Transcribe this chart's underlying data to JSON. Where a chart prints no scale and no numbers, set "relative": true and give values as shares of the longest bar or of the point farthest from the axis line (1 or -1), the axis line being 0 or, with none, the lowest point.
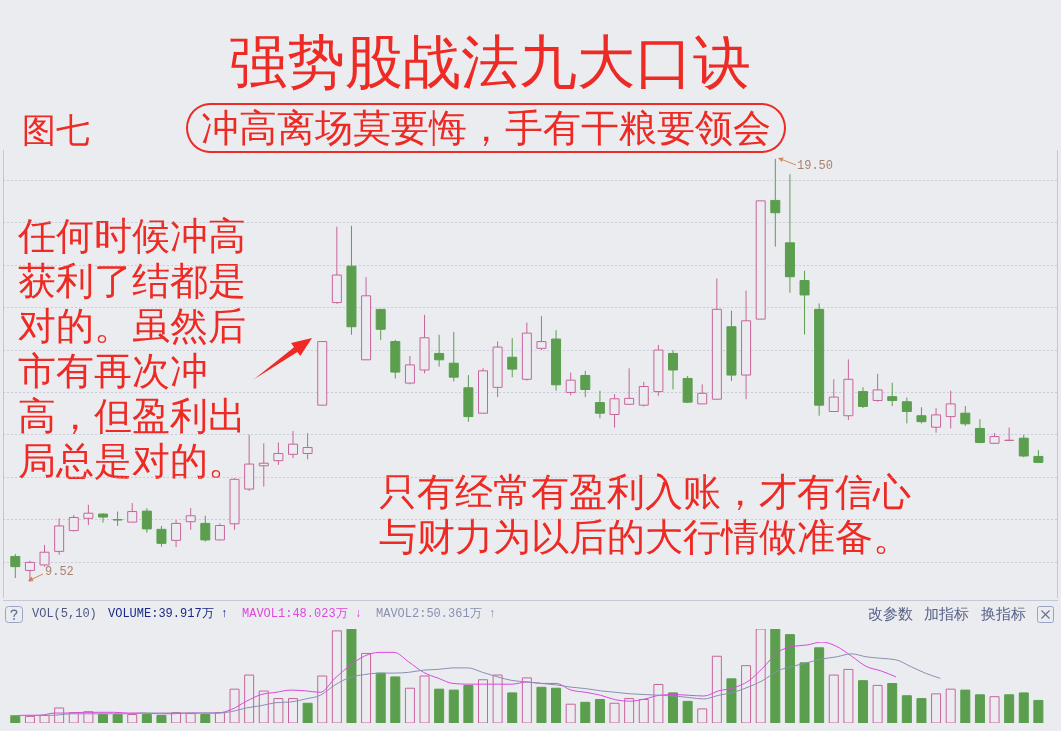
{
  "chart_data": [
    {
      "type": "candlestick",
      "title": "强势股战法九大口诀",
      "subtitle": "冲高离场莫要悔，手有干粮要领会",
      "categories": [
        null,
        null,
        null,
        null,
        null,
        null,
        null,
        null,
        null,
        null,
        null,
        null,
        null,
        null,
        null,
        null,
        null,
        null,
        null,
        null,
        null,
        null,
        null,
        null,
        null,
        null,
        null,
        null,
        null,
        null,
        null,
        null,
        null,
        null,
        null,
        null,
        null,
        null,
        null,
        null,
        null,
        null,
        null,
        null,
        null,
        null,
        null,
        null,
        null,
        null,
        null,
        null,
        null,
        null,
        null,
        null,
        null,
        null,
        null,
        null,
        null,
        null,
        null,
        null,
        null,
        null,
        null,
        null,
        null,
        null,
        null
      ],
      "ohlc": [
        [
          10.12,
          10.18,
          9.61,
          9.88
        ],
        [
          9.79,
          10.02,
          9.52,
          9.98
        ],
        [
          9.92,
          10.39,
          9.88,
          10.22
        ],
        [
          10.24,
          11.02,
          10.16,
          10.84
        ],
        [
          10.73,
          11.1,
          10.71,
          11.04
        ],
        [
          11.02,
          11.34,
          10.86,
          11.14
        ],
        [
          11.12,
          11.14,
          10.92,
          11.05
        ],
        [
          10.99,
          11.18,
          10.84,
          10.98
        ],
        [
          10.93,
          11.38,
          10.93,
          11.18
        ],
        [
          11.19,
          11.26,
          10.68,
          10.77
        ],
        [
          10.76,
          10.84,
          10.35,
          10.43
        ],
        [
          10.5,
          10.98,
          10.34,
          10.9
        ],
        [
          10.94,
          11.26,
          10.75,
          11.08
        ],
        [
          10.9,
          11.08,
          10.47,
          10.51
        ],
        [
          10.51,
          10.9,
          10.5,
          10.85
        ],
        [
          10.89,
          11.97,
          10.75,
          11.94
        ],
        [
          11.71,
          12.99,
          11.67,
          12.3
        ],
        [
          12.26,
          12.79,
          11.77,
          12.32
        ],
        [
          12.38,
          12.81,
          12.28,
          12.55
        ],
        [
          12.53,
          13.08,
          12.44,
          12.77
        ],
        [
          12.55,
          13.03,
          12.41,
          12.69
        ],
        [
          13.69,
          15.19,
          13.69,
          15.19
        ],
        [
          16.11,
          17.9,
          16.08,
          16.76
        ],
        [
          16.97,
          17.92,
          15.35,
          15.54
        ],
        [
          14.76,
          16.71,
          14.76,
          16.27
        ],
        [
          15.95,
          15.95,
          15.23,
          15.48
        ],
        [
          15.19,
          15.23,
          14.32,
          14.47
        ],
        [
          14.21,
          14.85,
          14.18,
          14.64
        ],
        [
          14.52,
          15.82,
          14.44,
          15.28
        ],
        [
          14.91,
          15.35,
          14.6,
          14.76
        ],
        [
          14.68,
          15.42,
          14.25,
          14.35
        ],
        [
          14.1,
          14.4,
          13.3,
          13.42
        ],
        [
          13.5,
          14.56,
          13.5,
          14.5
        ],
        [
          14.11,
          15.19,
          13.88,
          15.06
        ],
        [
          14.82,
          15.27,
          14.35,
          14.54
        ],
        [
          14.3,
          15.64,
          14.27,
          15.39
        ],
        [
          15.03,
          15.79,
          14.99,
          15.19
        ],
        [
          15.25,
          15.46,
          14.03,
          14.17
        ],
        [
          13.99,
          14.46,
          13.92,
          14.28
        ],
        [
          14.39,
          14.5,
          13.88,
          14.06
        ],
        [
          13.75,
          14.03,
          13.38,
          13.5
        ],
        [
          13.47,
          13.95,
          13.16,
          13.84
        ],
        [
          13.71,
          14.56,
          13.71,
          13.85
        ],
        [
          13.69,
          14.24,
          13.66,
          14.13
        ],
        [
          14.01,
          15.11,
          13.91,
          14.99
        ],
        [
          14.91,
          14.99,
          14.06,
          14.52
        ],
        [
          14.32,
          14.38,
          13.74,
          13.76
        ],
        [
          13.72,
          14.18,
          13.72,
          13.97
        ],
        [
          13.83,
          16.68,
          13.83,
          15.95
        ],
        [
          15.54,
          15.92,
          14.26,
          14.4
        ],
        [
          14.4,
          16.39,
          13.83,
          15.68
        ],
        [
          15.72,
          18.51,
          15.72,
          18.51
        ],
        [
          18.52,
          19.5,
          17.43,
          18.23
        ],
        [
          17.52,
          19.14,
          16.34,
          16.72
        ],
        [
          16.63,
          16.86,
          15.36,
          16.29
        ],
        [
          15.95,
          16.09,
          13.44,
          13.69
        ],
        [
          13.54,
          14.3,
          13.54,
          13.88
        ],
        [
          13.44,
          14.77,
          13.34,
          14.3
        ],
        [
          14.01,
          14.11,
          13.62,
          13.66
        ],
        [
          13.8,
          14.43,
          13.77,
          14.05
        ],
        [
          13.89,
          14.22,
          13.67,
          13.8
        ],
        [
          13.77,
          13.87,
          13.26,
          13.54
        ],
        [
          13.44,
          13.64,
          13.26,
          13.3
        ],
        [
          13.17,
          13.62,
          13.04,
          13.46
        ],
        [
          13.42,
          14.03,
          13.14,
          13.72
        ],
        [
          13.5,
          13.67,
          13.2,
          13.25
        ],
        [
          13.14,
          13.36,
          12.79,
          12.81
        ],
        [
          12.79,
          13.03,
          12.78,
          12.95
        ],
        [
          12.86,
          13.16,
          12.86,
          12.86
        ],
        [
          12.91,
          12.99,
          12.46,
          12.49
        ],
        [
          12.48,
          12.63,
          12.32,
          12.34
        ]
      ],
      "colors": [
        "#5a9e4e",
        "#c8649b",
        "#c8649b",
        "#c8649b",
        "#c8649b",
        "#c8649b",
        "#5a9e4e",
        "#5a9e4e",
        "#c8649b",
        "#5a9e4e",
        "#5a9e4e",
        "#c8649b",
        "#c8649b",
        "#5a9e4e",
        "#c8649b",
        "#c8649b",
        "#c8649b",
        "#c8649b",
        "#c8649b",
        "#c8649b",
        "#c8649b",
        "#c8649b",
        "#c8649b",
        "#5a9e4e",
        "#c8649b",
        "#5a9e4e",
        "#5a9e4e",
        "#c8649b",
        "#c8649b",
        "#5a9e4e",
        "#5a9e4e",
        "#5a9e4e",
        "#c8649b",
        "#c8649b",
        "#5a9e4e",
        "#c8649b",
        "#c8649b",
        "#5a9e4e",
        "#c8649b",
        "#5a9e4e",
        "#5a9e4e",
        "#c8649b",
        "#c8649b",
        "#c8649b",
        "#c8649b",
        "#5a9e4e",
        "#5a9e4e",
        "#c8649b",
        "#c8649b",
        "#5a9e4e",
        "#c8649b",
        "#c8649b",
        "#5a9e4e",
        "#5a9e4e",
        "#5a9e4e",
        "#5a9e4e",
        "#c8649b",
        "#c8649b",
        "#5a9e4e",
        "#c8649b",
        "#5a9e4e",
        "#5a9e4e",
        "#5a9e4e",
        "#c8649b",
        "#c8649b",
        "#5a9e4e",
        "#5a9e4e",
        "#c8649b",
        "#c8649b",
        "#5a9e4e",
        "#5a9e4e"
      ],
      "ylim": [
        9.14,
        19.71
      ],
      "yticks": [
        {
          "value": 10,
          "label": null
        },
        {
          "value": 11,
          "label": null
        },
        {
          "value": 12,
          "label": null
        },
        {
          "value": 13,
          "label": null
        },
        {
          "value": 14,
          "label": null
        },
        {
          "value": 15,
          "label": null
        },
        {
          "value": 16,
          "label": null
        },
        {
          "value": 17,
          "label": null
        },
        {
          "value": 18,
          "label": null
        },
        {
          "value": 19,
          "label": null
        }
      ],
      "grid": "y",
      "annotations": [
        "图七",
        "任何时候冲高获利了结都是对的。虽然后市有再次冲高，但盈利出局总是对的。",
        "只有经常有盈利入账，才有信心与财力为以后的大行情做准备。",
        "19.50",
        "9.52"
      ]
    },
    {
      "type": "bar",
      "relative": true,
      "categories": [
        null,
        null,
        null,
        null,
        null,
        null,
        null,
        null,
        null,
        null,
        null,
        null,
        null,
        null,
        null,
        null,
        null,
        null,
        null,
        null,
        null,
        null,
        null,
        null,
        null,
        null,
        null,
        null,
        null,
        null,
        null,
        null,
        null,
        null,
        null,
        null,
        null,
        null,
        null,
        null,
        null,
        null,
        null,
        null,
        null,
        null,
        null,
        null,
        null,
        null,
        null,
        null,
        null,
        null,
        null,
        null,
        null,
        null,
        null,
        null,
        null,
        null,
        null,
        null,
        null,
        null,
        null,
        null,
        null,
        null,
        null
      ],
      "values": [
        0.07,
        0.07,
        0.08,
        0.16,
        0.11,
        0.12,
        0.09,
        0.09,
        0.09,
        0.09,
        0.08,
        0.11,
        0.1,
        0.09,
        0.11,
        0.36,
        0.51,
        0.34,
        0.26,
        0.26,
        0.21,
        0.5,
        0.98,
        1,
        0.74,
        0.53,
        0.49,
        0.37,
        0.5,
        0.36,
        0.35,
        0.4,
        0.46,
        0.51,
        0.32,
        0.48,
        0.38,
        0.37,
        0.2,
        0.22,
        0.25,
        0.21,
        0.26,
        0.25,
        0.41,
        0.32,
        0.23,
        0.15,
        0.71,
        0.47,
        0.61,
        1,
        1,
        0.94,
        0.64,
        0.8,
        0.51,
        0.57,
        0.45,
        0.4,
        0.42,
        0.29,
        0.26,
        0.31,
        0.36,
        0.35,
        0.3,
        0.28,
        0.3,
        0.32,
        0.24
      ],
      "colors": [
        "#5a9e4e",
        "#c8649b",
        "#c8649b",
        "#c8649b",
        "#c8649b",
        "#c8649b",
        "#5a9e4e",
        "#5a9e4e",
        "#c8649b",
        "#5a9e4e",
        "#5a9e4e",
        "#c8649b",
        "#c8649b",
        "#5a9e4e",
        "#c8649b",
        "#c8649b",
        "#c8649b",
        "#c8649b",
        "#c8649b",
        "#c8649b",
        "#5a9e4e",
        "#c8649b",
        "#c8649b",
        "#5a9e4e",
        "#c8649b",
        "#5a9e4e",
        "#5a9e4e",
        "#c8649b",
        "#c8649b",
        "#5a9e4e",
        "#5a9e4e",
        "#5a9e4e",
        "#c8649b",
        "#c8649b",
        "#5a9e4e",
        "#c8649b",
        "#5a9e4e",
        "#5a9e4e",
        "#c8649b",
        "#5a9e4e",
        "#5a9e4e",
        "#c8649b",
        "#c8649b",
        "#c8649b",
        "#c8649b",
        "#5a9e4e",
        "#5a9e4e",
        "#c8649b",
        "#c8649b",
        "#5a9e4e",
        "#c8649b",
        "#c8649b",
        "#5a9e4e",
        "#5a9e4e",
        "#5a9e4e",
        "#5a9e4e",
        "#c8649b",
        "#c8649b",
        "#5a9e4e",
        "#c8649b",
        "#5a9e4e",
        "#5a9e4e",
        "#5a9e4e",
        "#c8649b",
        "#c8649b",
        "#5a9e4e",
        "#5a9e4e",
        "#c8649b",
        "#5a9e4e",
        "#5a9e4e",
        "#5a9e4e"
      ],
      "annotations": [
        "VOL(5,10)",
        "VOLUME:39.917万 ↑",
        "改参数",
        "加指标",
        "换指标"
      ]
    },
    {
      "type": "line",
      "relative": true,
      "categories": [
        null,
        null,
        null,
        null,
        null,
        null,
        null,
        null,
        null,
        null,
        null,
        null,
        null,
        null,
        null,
        null,
        null,
        null,
        null,
        null,
        null,
        null,
        null,
        null,
        null,
        null,
        null,
        null,
        null,
        null,
        null,
        null,
        null,
        null,
        null,
        null,
        null,
        null,
        null,
        null,
        null,
        null,
        null,
        null,
        null,
        null,
        null,
        null,
        null,
        null,
        null,
        null,
        null,
        null,
        null,
        null,
        null,
        null,
        null,
        null,
        null,
        null,
        null,
        null,
        null,
        null,
        null,
        null,
        null,
        null,
        null
      ],
      "series": [
        {
          "name": "MAVOL1:48.023万 ↓",
          "color": "#dd48dd",
          "values": [
            0,
            0.01,
            0.01,
            0.04,
            0.04,
            0.05,
            0.05,
            0.05,
            0.04,
            0.04,
            0.03,
            0.03,
            0.04,
            0.04,
            0.04,
            0.09,
            0.2,
            0.29,
            0.32,
            0.35,
            0.34,
            0.32,
            0.51,
            0.68,
            0.81,
            0.86,
            0.86,
            0.73,
            0.59,
            0.51,
            0.44,
            0.43,
            0.43,
            0.43,
            0.43,
            0.46,
            0.44,
            0.44,
            0.35,
            0.32,
            0.28,
            0.22,
            0.2,
            0.23,
            0.28,
            0.29,
            0.28,
            0.27,
            0.34,
            0.38,
            0.47,
            0.65,
            0.86,
            0.94,
            0.96,
            1,
            0.94,
            0.81,
            0.67,
            0.61,
            0.53,
            null,
            null,
            null,
            null,
            null,
            null,
            null,
            null,
            null,
            null
          ]
        },
        {
          "name": "MAVOL2:50.361万 ↑",
          "color": "#8a90b0",
          "values": [
            0,
            0,
            0.01,
            0.01,
            0.03,
            0.03,
            0.03,
            0.03,
            0.03,
            0.04,
            0.04,
            0.04,
            0.04,
            0.04,
            0.04,
            0.06,
            0.11,
            0.14,
            0.18,
            0.19,
            0.23,
            0.28,
            0.42,
            0.52,
            0.56,
            0.58,
            0.58,
            0.59,
            0.62,
            0.63,
            0.65,
            0.65,
            0.59,
            0.53,
            0.48,
            0.46,
            0.44,
            0.42,
            0.39,
            0.37,
            0.34,
            0.32,
            0.3,
            0.29,
            0.28,
            0.27,
            0.25,
            0.23,
            0.28,
            0.32,
            0.39,
            0.48,
            0.61,
            0.67,
            0.72,
            0.77,
            0.8,
            0.84,
            0.8,
            0.78,
            0.76,
            0.67,
            0.58,
            0.51,
            null,
            null,
            null,
            null,
            null,
            null,
            null
          ]
        }
      ]
    }
  ]
}
